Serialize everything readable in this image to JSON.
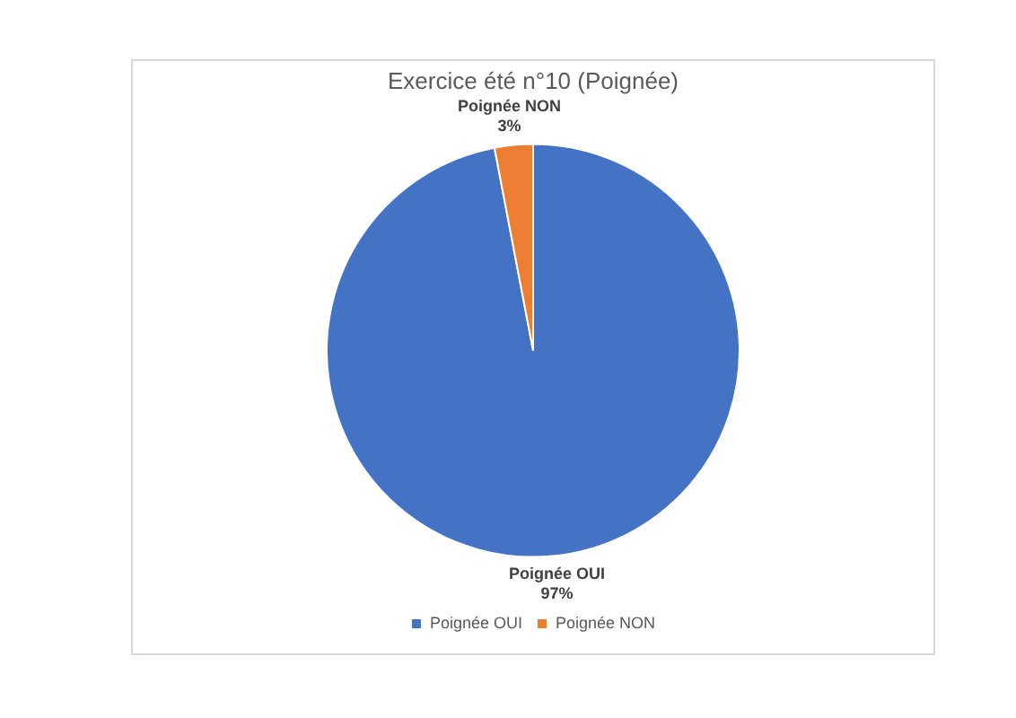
{
  "chart_data": {
    "type": "pie",
    "title": "Exercice été n°10 (Poignée)",
    "categories": [
      "Poignée OUI",
      "Poignée NON"
    ],
    "values": [
      97,
      3
    ],
    "colors": [
      "#4472c4",
      "#ed7d31"
    ],
    "value_labels": [
      "97%",
      "3%"
    ],
    "legend": "bottom"
  }
}
